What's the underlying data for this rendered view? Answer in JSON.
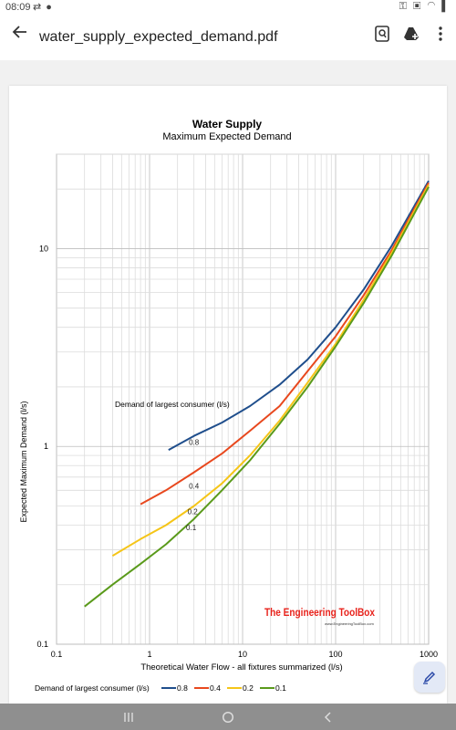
{
  "status_bar": {
    "time": "08:09",
    "left_icons": [
      "sync-icon",
      "whatsapp-icon"
    ],
    "right_icons": [
      "vpn-key-icon",
      "no-sim-icon",
      "wifi-icon",
      "battery-icon"
    ]
  },
  "app_bar": {
    "title": "water_supply_expected_demand.pdf",
    "actions": [
      "search-document-icon",
      "drive-add-icon",
      "more-vert-icon"
    ]
  },
  "chart_data": {
    "type": "line",
    "title": "Water Supply",
    "subtitle": "Maximum Expected Demand",
    "xlabel": "Theoretical Water Flow - all fixtures summarized (l/s)",
    "ylabel": "Expected Maximum Demand (l/s)",
    "xscale": "log",
    "yscale": "log",
    "xlim": [
      0.1,
      1000
    ],
    "ylim": [
      0.1,
      30
    ],
    "x_ticks": [
      "0.1",
      "1",
      "10",
      "100",
      "1000"
    ],
    "y_ticks": [
      "0.1",
      "1",
      "10"
    ],
    "grid": true,
    "annotation": "Demand of largest consumer (l/s)",
    "legend_title": "Demand of largest consumer (l/s)",
    "legend_position": "bottom",
    "series": [
      {
        "name": "0.8",
        "color": "#1f4e8c",
        "label_at": [
          3,
          1.05
        ],
        "x": [
          1.6,
          3,
          6,
          12,
          25,
          50,
          100,
          200,
          400,
          1000
        ],
        "y": [
          0.96,
          1.13,
          1.32,
          1.6,
          2.05,
          2.75,
          4.0,
          6.2,
          10.3,
          22.0
        ]
      },
      {
        "name": "0.4",
        "color": "#e8481e",
        "label_at": [
          3,
          0.63
        ],
        "x": [
          0.8,
          1.5,
          3,
          6,
          12,
          25,
          50,
          100,
          200,
          400,
          1000
        ],
        "y": [
          0.51,
          0.6,
          0.74,
          0.92,
          1.2,
          1.6,
          2.4,
          3.6,
          5.8,
          9.8,
          21.5
        ]
      },
      {
        "name": "0.2",
        "color": "#f5c518",
        "label_at": [
          2.9,
          0.47
        ],
        "x": [
          0.4,
          0.8,
          1.5,
          3,
          6,
          12,
          25,
          50,
          100,
          200,
          400,
          1000
        ],
        "y": [
          0.28,
          0.34,
          0.4,
          0.5,
          0.65,
          0.9,
          1.35,
          2.1,
          3.3,
          5.5,
          9.5,
          21.0
        ]
      },
      {
        "name": "0.1",
        "color": "#5a9a1b",
        "label_at": [
          2.8,
          0.39
        ],
        "x": [
          0.2,
          0.4,
          0.8,
          1.5,
          3,
          6,
          12,
          25,
          50,
          100,
          200,
          400,
          1000
        ],
        "y": [
          0.155,
          0.2,
          0.255,
          0.32,
          0.43,
          0.6,
          0.85,
          1.3,
          2.0,
          3.2,
          5.3,
          9.2,
          20.5
        ]
      }
    ]
  },
  "logo": {
    "brand": "The Engineering ToolBox",
    "url": "www.EngineeringToolBox.com",
    "brand_color": "#e8221b"
  },
  "nav_bar": {
    "buttons": [
      "recent-apps-icon",
      "home-icon",
      "back-nav-icon"
    ]
  }
}
